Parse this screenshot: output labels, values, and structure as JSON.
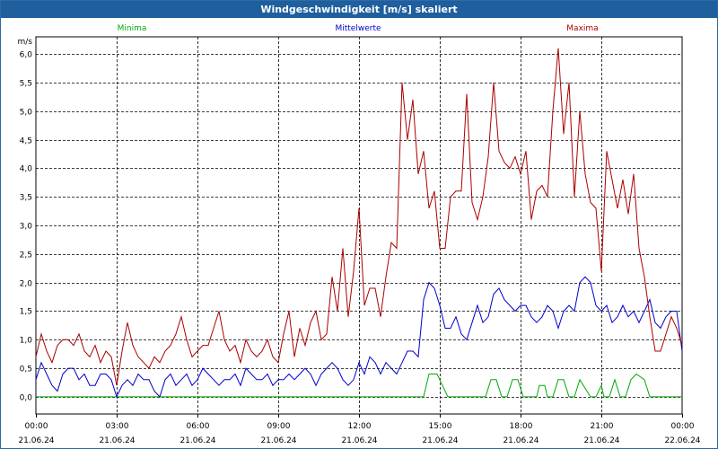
{
  "window": {
    "title": "Windgeschwindigkeit [m/s] skaliert"
  },
  "chart_data": {
    "type": "line",
    "title": "Windgeschwindigkeit [m/s] skaliert",
    "ylabel": "m/s",
    "xlabel": "",
    "ylim": [
      -0.3,
      6.3
    ],
    "xlim": [
      0,
      24
    ],
    "yticks": [
      "0,0",
      "0,5",
      "1,0",
      "1,5",
      "2,0",
      "2,5",
      "3,0",
      "3,5",
      "4,0",
      "4,5",
      "5,0",
      "5,5",
      "6,0"
    ],
    "xticks": [
      {
        "time": "00:00",
        "date": "21.06.24"
      },
      {
        "time": "03:00",
        "date": "21.06.24"
      },
      {
        "time": "06:00",
        "date": "21.06.24"
      },
      {
        "time": "09:00",
        "date": "21.06.24"
      },
      {
        "time": "12:00",
        "date": "21.06.24"
      },
      {
        "time": "15:00",
        "date": "21.06.24"
      },
      {
        "time": "18:00",
        "date": "21.06.24"
      },
      {
        "time": "21:00",
        "date": "21.06.24"
      },
      {
        "time": "00:00",
        "date": "22.06.24"
      }
    ],
    "grid": true,
    "series": [
      {
        "name": "Minima",
        "color": "#00aa00",
        "x": [
          0,
          14.4,
          14.6,
          14.9,
          15.1,
          15.3,
          16.7,
          16.9,
          17.1,
          17.3,
          17.5,
          17.7,
          17.9,
          18.1,
          18.6,
          18.7,
          18.9,
          19.0,
          19.2,
          19.4,
          19.6,
          19.8,
          20.0,
          20.2,
          20.6,
          20.8,
          21.0,
          21.1,
          21.3,
          21.5,
          21.7,
          21.9,
          22.1,
          22.3,
          22.6,
          22.8,
          24
        ],
        "y": [
          0,
          0,
          0.4,
          0.4,
          0.2,
          0,
          0,
          0.3,
          0.3,
          0,
          0,
          0.3,
          0.3,
          0,
          0,
          0.2,
          0.2,
          0,
          0,
          0.3,
          0.3,
          0,
          0,
          0.3,
          0,
          0,
          0.2,
          0,
          0,
          0.3,
          0,
          0,
          0.3,
          0.4,
          0.3,
          0,
          0
        ]
      },
      {
        "name": "Mittelwerte",
        "color": "#0000cc",
        "x": [
          0,
          0.2,
          0.4,
          0.6,
          0.8,
          1.0,
          1.2,
          1.4,
          1.6,
          1.8,
          2.0,
          2.2,
          2.4,
          2.6,
          2.8,
          3.0,
          3.2,
          3.4,
          3.6,
          3.8,
          4.0,
          4.2,
          4.4,
          4.6,
          4.8,
          5.0,
          5.2,
          5.4,
          5.6,
          5.8,
          6.0,
          6.2,
          6.4,
          6.6,
          6.8,
          7.0,
          7.2,
          7.4,
          7.6,
          7.8,
          8.0,
          8.2,
          8.4,
          8.6,
          8.8,
          9.0,
          9.2,
          9.4,
          9.6,
          9.8,
          10.0,
          10.2,
          10.4,
          10.6,
          10.8,
          11.0,
          11.2,
          11.4,
          11.6,
          11.8,
          12.0,
          12.2,
          12.4,
          12.6,
          12.8,
          13.0,
          13.2,
          13.4,
          13.6,
          13.8,
          14.0,
          14.2,
          14.4,
          14.6,
          14.8,
          15.0,
          15.2,
          15.4,
          15.6,
          15.8,
          16.0,
          16.2,
          16.4,
          16.6,
          16.8,
          17.0,
          17.2,
          17.4,
          17.6,
          17.8,
          18.0,
          18.2,
          18.4,
          18.6,
          18.8,
          19.0,
          19.2,
          19.4,
          19.6,
          19.8,
          20.0,
          20.2,
          20.4,
          20.6,
          20.8,
          21.0,
          21.2,
          21.4,
          21.6,
          21.8,
          22.0,
          22.2,
          22.4,
          22.6,
          22.8,
          23.0,
          23.2,
          23.4,
          23.6,
          23.8,
          24.0
        ],
        "y": [
          0.3,
          0.6,
          0.4,
          0.2,
          0.1,
          0.4,
          0.5,
          0.5,
          0.3,
          0.4,
          0.2,
          0.2,
          0.4,
          0.4,
          0.3,
          0.0,
          0.2,
          0.3,
          0.2,
          0.4,
          0.3,
          0.3,
          0.1,
          0.0,
          0.3,
          0.4,
          0.2,
          0.3,
          0.4,
          0.2,
          0.3,
          0.5,
          0.4,
          0.3,
          0.2,
          0.3,
          0.3,
          0.4,
          0.2,
          0.5,
          0.4,
          0.3,
          0.3,
          0.4,
          0.2,
          0.3,
          0.3,
          0.4,
          0.3,
          0.4,
          0.5,
          0.4,
          0.2,
          0.4,
          0.5,
          0.6,
          0.5,
          0.3,
          0.2,
          0.3,
          0.6,
          0.4,
          0.7,
          0.6,
          0.4,
          0.6,
          0.5,
          0.4,
          0.6,
          0.8,
          0.8,
          0.7,
          1.7,
          2.0,
          1.9,
          1.6,
          1.2,
          1.2,
          1.4,
          1.1,
          1.0,
          1.3,
          1.6,
          1.3,
          1.4,
          1.8,
          1.9,
          1.7,
          1.6,
          1.5,
          1.6,
          1.6,
          1.4,
          1.3,
          1.4,
          1.6,
          1.5,
          1.2,
          1.5,
          1.6,
          1.5,
          2.0,
          2.1,
          2.0,
          1.6,
          1.5,
          1.6,
          1.3,
          1.4,
          1.6,
          1.4,
          1.5,
          1.3,
          1.5,
          1.7,
          1.3,
          1.2,
          1.4,
          1.5,
          1.5,
          0.8
        ]
      },
      {
        "name": "Maxima",
        "color": "#aa0000",
        "x": [
          0,
          0.2,
          0.4,
          0.6,
          0.8,
          1.0,
          1.2,
          1.4,
          1.6,
          1.8,
          2.0,
          2.2,
          2.4,
          2.6,
          2.8,
          3.0,
          3.2,
          3.4,
          3.6,
          3.8,
          4.0,
          4.2,
          4.4,
          4.6,
          4.8,
          5.0,
          5.2,
          5.4,
          5.6,
          5.8,
          6.0,
          6.2,
          6.4,
          6.6,
          6.8,
          7.0,
          7.2,
          7.4,
          7.6,
          7.8,
          8.0,
          8.2,
          8.4,
          8.6,
          8.8,
          9.0,
          9.2,
          9.4,
          9.6,
          9.8,
          10.0,
          10.2,
          10.4,
          10.6,
          10.8,
          11.0,
          11.2,
          11.4,
          11.6,
          11.8,
          12.0,
          12.2,
          12.4,
          12.6,
          12.8,
          13.0,
          13.2,
          13.4,
          13.6,
          13.8,
          14.0,
          14.2,
          14.4,
          14.6,
          14.8,
          15.0,
          15.2,
          15.4,
          15.6,
          15.8,
          16.0,
          16.2,
          16.4,
          16.6,
          16.8,
          17.0,
          17.2,
          17.4,
          17.6,
          17.8,
          18.0,
          18.2,
          18.4,
          18.6,
          18.8,
          19.0,
          19.2,
          19.4,
          19.6,
          19.8,
          20.0,
          20.2,
          20.4,
          20.6,
          20.8,
          21.0,
          21.2,
          21.4,
          21.6,
          21.8,
          22.0,
          22.2,
          22.4,
          22.6,
          22.8,
          23.0,
          23.2,
          23.4,
          23.6,
          23.8,
          24.0
        ],
        "y": [
          0.7,
          1.1,
          0.8,
          0.6,
          0.9,
          1.0,
          1.0,
          0.9,
          1.1,
          0.8,
          0.7,
          0.9,
          0.6,
          0.8,
          0.7,
          0.2,
          0.8,
          1.3,
          0.9,
          0.7,
          0.6,
          0.5,
          0.7,
          0.6,
          0.8,
          0.9,
          1.1,
          1.4,
          1.0,
          0.7,
          0.8,
          0.9,
          0.9,
          1.2,
          1.5,
          1.0,
          0.8,
          0.9,
          0.6,
          1.0,
          0.8,
          0.7,
          0.8,
          1.0,
          0.7,
          0.6,
          1.1,
          1.5,
          0.7,
          1.2,
          0.9,
          1.3,
          1.5,
          1.0,
          1.1,
          2.1,
          1.5,
          2.6,
          1.4,
          2.2,
          3.3,
          1.6,
          1.9,
          1.9,
          1.4,
          2.1,
          2.7,
          2.6,
          5.5,
          4.5,
          5.2,
          3.9,
          4.3,
          3.3,
          3.6,
          2.6,
          2.6,
          3.5,
          3.6,
          3.6,
          5.3,
          3.4,
          3.1,
          3.5,
          4.2,
          5.5,
          4.3,
          4.1,
          4.0,
          4.2,
          3.9,
          4.3,
          3.1,
          3.6,
          3.7,
          3.5,
          5.0,
          6.1,
          4.6,
          5.5,
          3.5,
          5.0,
          3.9,
          3.4,
          3.3,
          2.2,
          4.3,
          3.8,
          3.3,
          3.8,
          3.2,
          3.9,
          2.6,
          2.1,
          1.4,
          0.8,
          0.8,
          1.1,
          1.4,
          1.2,
          0.9
        ]
      }
    ]
  }
}
